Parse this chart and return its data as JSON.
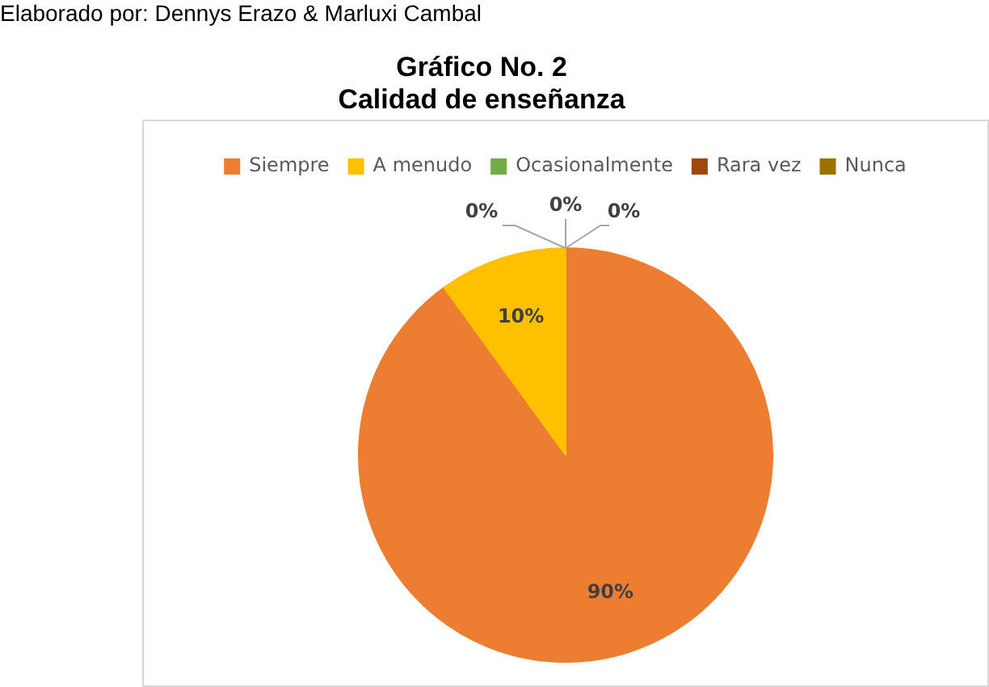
{
  "chart_data": {
    "type": "pie",
    "title": "Gráfico No. 2\nCalidad de enseñanza",
    "annotations": [
      "Elaborado por: Dennys Erazo & Marluxi Cambal"
    ],
    "categories": [
      "Siempre",
      "A menudo",
      "Ocasionalmente",
      "Rara vez",
      "Nunca"
    ],
    "values": [
      90,
      10,
      0,
      0,
      0
    ],
    "colors": [
      "#ed7d31",
      "#ffc000",
      "#70ad47",
      "#9e480e",
      "#997300"
    ],
    "value_labels": [
      "90%",
      "10%",
      "0%",
      "0%",
      "0%"
    ],
    "legend": "top"
  }
}
